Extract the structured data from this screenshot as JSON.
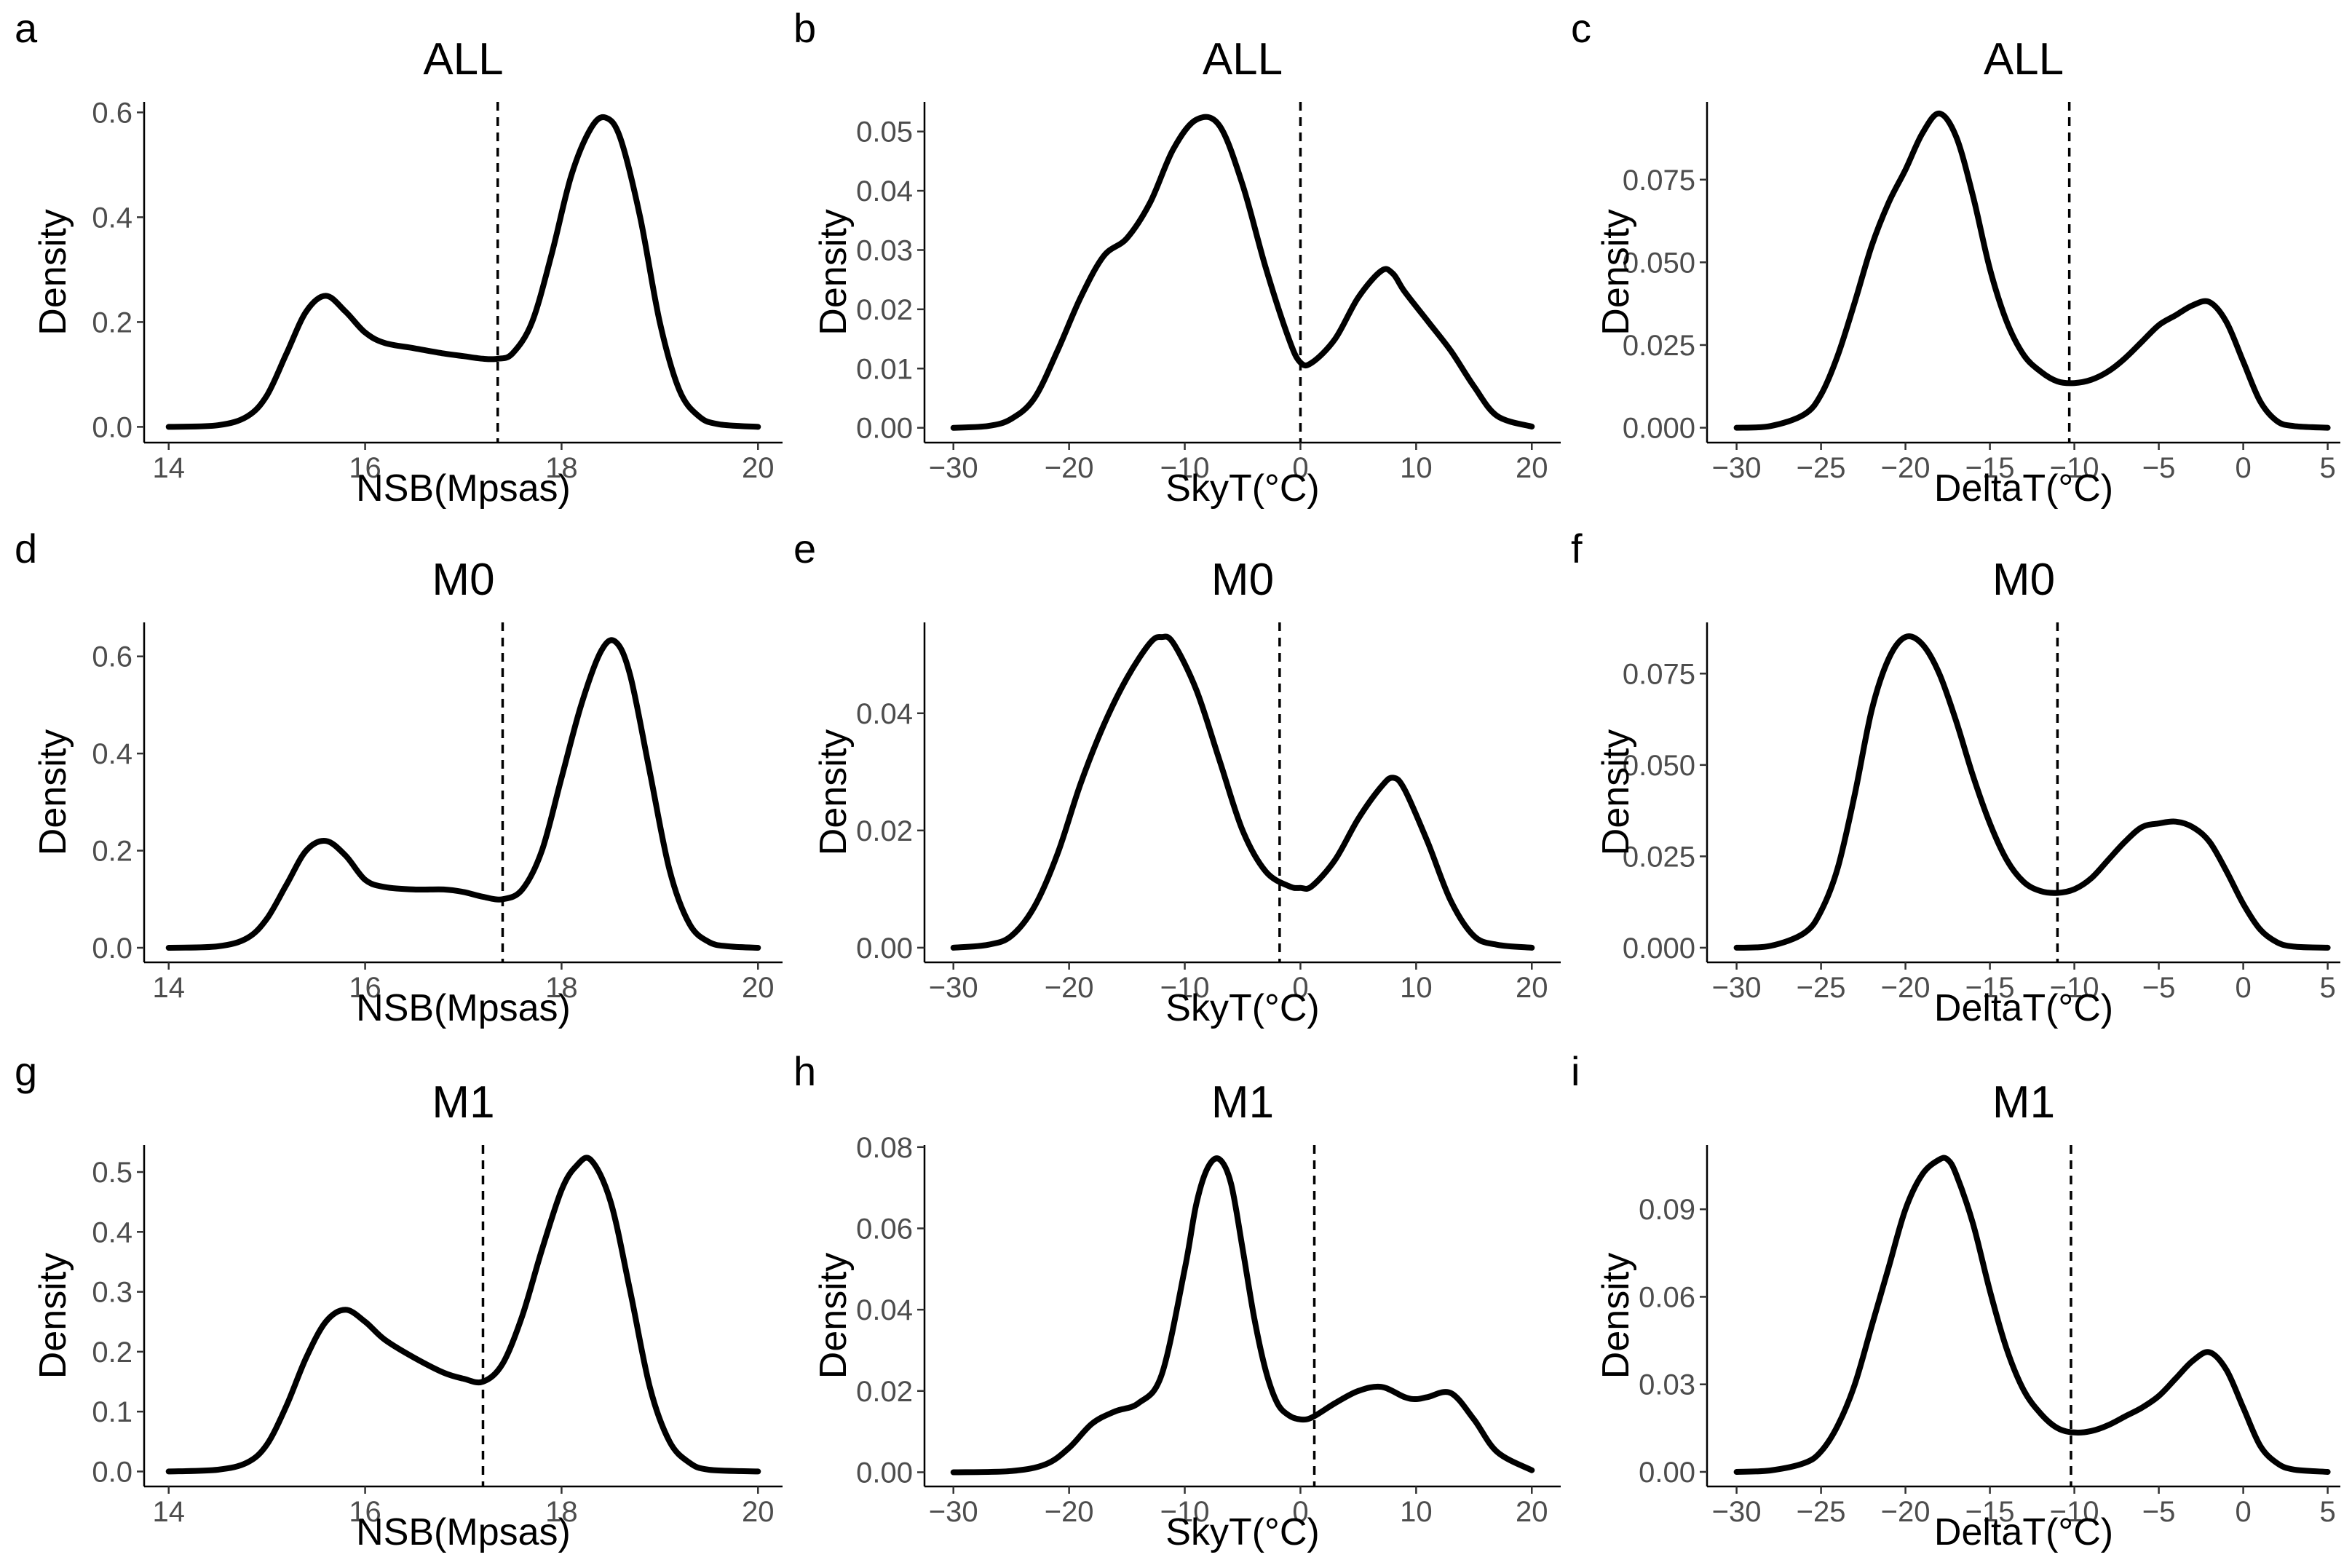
{
  "figure": {
    "background": "#ffffff",
    "curve_color": "#000000"
  },
  "chart_data": [
    {
      "id": "a",
      "letter": "a",
      "type": "line",
      "title": "ALL",
      "xlabel": "NSB(Mpsas)",
      "ylabel": "Density",
      "xlim": [
        13.75,
        20.25
      ],
      "ylim": [
        -0.03,
        0.62
      ],
      "xticks": [
        14,
        16,
        18,
        20
      ],
      "xtick_labels": [
        "14",
        "16",
        "18",
        "20"
      ],
      "yticks": [
        0,
        0.2,
        0.4,
        0.6
      ],
      "ytick_labels": [
        "0.0",
        "0.2",
        "0.4",
        "0.6"
      ],
      "vline": 17.35,
      "x": [
        14,
        14.5,
        14.8,
        15,
        15.2,
        15.4,
        15.6,
        15.8,
        16,
        16.2,
        16.5,
        16.8,
        17,
        17.2,
        17.35,
        17.5,
        17.7,
        17.9,
        18.1,
        18.3,
        18.45,
        18.6,
        18.8,
        19,
        19.2,
        19.4,
        19.6,
        20
      ],
      "y": [
        0,
        0.003,
        0.02,
        0.06,
        0.14,
        0.22,
        0.25,
        0.22,
        0.18,
        0.16,
        0.15,
        0.14,
        0.135,
        0.13,
        0.13,
        0.14,
        0.2,
        0.33,
        0.48,
        0.57,
        0.59,
        0.55,
        0.4,
        0.2,
        0.07,
        0.02,
        0.005,
        0
      ]
    },
    {
      "id": "b",
      "letter": "b",
      "type": "line",
      "title": "ALL",
      "xlabel": "SkyT(°C)",
      "ylabel": "Density",
      "xlim": [
        -32.5,
        22.5
      ],
      "ylim": [
        -0.0025,
        0.055
      ],
      "xticks": [
        -30,
        -20,
        -10,
        0,
        10,
        20
      ],
      "xtick_labels": [
        "−30",
        "−20",
        "−10",
        "0",
        "10",
        "20"
      ],
      "yticks": [
        0,
        0.01,
        0.02,
        0.03,
        0.04,
        0.05
      ],
      "ytick_labels": [
        "0.00",
        "0.01",
        "0.02",
        "0.03",
        "0.04",
        "0.05"
      ],
      "vline": 0,
      "x": [
        -30,
        -27,
        -25,
        -23,
        -21,
        -19,
        -17,
        -15,
        -13,
        -11,
        -9,
        -7,
        -5,
        -3,
        -1,
        0,
        1,
        3,
        5,
        7,
        8,
        9,
        11,
        13,
        15,
        17,
        20
      ],
      "y": [
        0,
        0.0003,
        0.0015,
        0.005,
        0.013,
        0.022,
        0.029,
        0.032,
        0.038,
        0.047,
        0.052,
        0.051,
        0.041,
        0.027,
        0.015,
        0.011,
        0.011,
        0.015,
        0.022,
        0.0265,
        0.026,
        0.023,
        0.018,
        0.013,
        0.007,
        0.002,
        0.0002
      ]
    },
    {
      "id": "c",
      "letter": "c",
      "type": "line",
      "title": "ALL",
      "xlabel": "DeltaT(°C)",
      "ylabel": "Density",
      "xlim": [
        -31.75,
        5.75
      ],
      "ylim": [
        -0.0045,
        0.0985
      ],
      "xticks": [
        -30,
        -25,
        -20,
        -15,
        -10,
        -5,
        0,
        5
      ],
      "xtick_labels": [
        "−30",
        "−25",
        "−20",
        "−15",
        "−10",
        "−5",
        "0",
        "5"
      ],
      "yticks": [
        0,
        0.025,
        0.05,
        0.075
      ],
      "ytick_labels": [
        "0.000",
        "0.025",
        "0.050",
        "0.075"
      ],
      "vline": -10.3,
      "x": [
        -30,
        -28,
        -26,
        -25,
        -24,
        -23,
        -22,
        -21,
        -20,
        -19,
        -18,
        -17,
        -16,
        -15,
        -14,
        -13,
        -12,
        -11,
        -10,
        -9,
        -8,
        -7,
        -6,
        -5,
        -4,
        -3,
        -2,
        -1,
        0,
        1,
        2,
        3,
        5
      ],
      "y": [
        0,
        0.0005,
        0.004,
        0.01,
        0.022,
        0.038,
        0.055,
        0.068,
        0.078,
        0.089,
        0.095,
        0.088,
        0.07,
        0.048,
        0.032,
        0.022,
        0.017,
        0.014,
        0.0135,
        0.0145,
        0.017,
        0.021,
        0.026,
        0.031,
        0.034,
        0.037,
        0.038,
        0.032,
        0.02,
        0.008,
        0.002,
        0.0005,
        0
      ]
    },
    {
      "id": "d",
      "letter": "d",
      "type": "line",
      "title": "M0",
      "xlabel": "NSB(Mpsas)",
      "ylabel": "Density",
      "xlim": [
        13.75,
        20.25
      ],
      "ylim": [
        -0.03,
        0.67
      ],
      "xticks": [
        14,
        16,
        18,
        20
      ],
      "xtick_labels": [
        "14",
        "16",
        "18",
        "20"
      ],
      "yticks": [
        0,
        0.2,
        0.4,
        0.6
      ],
      "ytick_labels": [
        "0.0",
        "0.2",
        "0.4",
        "0.6"
      ],
      "vline": 17.4,
      "x": [
        14,
        14.5,
        14.8,
        15,
        15.2,
        15.4,
        15.6,
        15.8,
        16,
        16.2,
        16.5,
        16.8,
        17,
        17.2,
        17.4,
        17.6,
        17.8,
        18,
        18.2,
        18.4,
        18.55,
        18.7,
        18.9,
        19.1,
        19.3,
        19.5,
        19.7,
        20
      ],
      "y": [
        0,
        0.003,
        0.02,
        0.06,
        0.13,
        0.2,
        0.22,
        0.19,
        0.14,
        0.125,
        0.12,
        0.12,
        0.115,
        0.105,
        0.1,
        0.12,
        0.2,
        0.35,
        0.5,
        0.61,
        0.63,
        0.56,
        0.36,
        0.16,
        0.05,
        0.012,
        0.003,
        0
      ]
    },
    {
      "id": "e",
      "letter": "e",
      "type": "line",
      "title": "M0",
      "xlabel": "SkyT(°C)",
      "ylabel": "Density",
      "xlim": [
        -32.5,
        22.5
      ],
      "ylim": [
        -0.0025,
        0.0555
      ],
      "xticks": [
        -30,
        -20,
        -10,
        0,
        10,
        20
      ],
      "xtick_labels": [
        "−30",
        "−20",
        "−10",
        "0",
        "10",
        "20"
      ],
      "yticks": [
        0,
        0.02,
        0.04
      ],
      "ytick_labels": [
        "0.00",
        "0.02",
        "0.04"
      ],
      "vline": -1.8,
      "x": [
        -30,
        -27,
        -25,
        -23,
        -21,
        -19,
        -17,
        -15,
        -13,
        -12,
        -11,
        -9,
        -7,
        -5,
        -3,
        -1,
        0,
        1,
        3,
        5,
        7,
        8,
        9,
        11,
        13,
        15,
        17,
        20
      ],
      "y": [
        0,
        0.0005,
        0.002,
        0.007,
        0.016,
        0.028,
        0.038,
        0.046,
        0.052,
        0.053,
        0.052,
        0.044,
        0.032,
        0.02,
        0.013,
        0.0105,
        0.0102,
        0.0105,
        0.015,
        0.022,
        0.0275,
        0.029,
        0.027,
        0.018,
        0.008,
        0.002,
        0.0005,
        0
      ]
    },
    {
      "id": "f",
      "letter": "f",
      "type": "line",
      "title": "M0",
      "xlabel": "DeltaT(°C)",
      "ylabel": "Density",
      "xlim": [
        -31.75,
        5.75
      ],
      "ylim": [
        -0.004,
        0.089
      ],
      "xticks": [
        -30,
        -25,
        -20,
        -15,
        -10,
        -5,
        0,
        5
      ],
      "xtick_labels": [
        "−30",
        "−25",
        "−20",
        "−15",
        "−10",
        "−5",
        "0",
        "5"
      ],
      "yticks": [
        0,
        0.025,
        0.05,
        0.075
      ],
      "ytick_labels": [
        "0.000",
        "0.025",
        "0.050",
        "0.075"
      ],
      "vline": -11,
      "x": [
        -30,
        -28,
        -26,
        -25,
        -24,
        -23,
        -22,
        -21,
        -20,
        -19,
        -18,
        -17,
        -16,
        -15,
        -14,
        -13,
        -12,
        -11,
        -10,
        -9,
        -8,
        -7,
        -6,
        -5,
        -4,
        -3,
        -2,
        -1,
        0,
        1,
        2,
        3,
        5
      ],
      "y": [
        0,
        0.0005,
        0.004,
        0.01,
        0.022,
        0.042,
        0.065,
        0.079,
        0.085,
        0.083,
        0.075,
        0.062,
        0.047,
        0.034,
        0.024,
        0.018,
        0.0155,
        0.015,
        0.016,
        0.019,
        0.024,
        0.029,
        0.033,
        0.034,
        0.0345,
        0.033,
        0.029,
        0.021,
        0.012,
        0.005,
        0.0015,
        0.0003,
        0
      ]
    },
    {
      "id": "g",
      "letter": "g",
      "type": "line",
      "title": "M1",
      "xlabel": "NSB(Mpsas)",
      "ylabel": "Density",
      "xlim": [
        13.75,
        20.25
      ],
      "ylim": [
        -0.025,
        0.545
      ],
      "xticks": [
        14,
        16,
        18,
        20
      ],
      "xtick_labels": [
        "14",
        "16",
        "18",
        "20"
      ],
      "yticks": [
        0,
        0.1,
        0.2,
        0.3,
        0.4,
        0.5
      ],
      "ytick_labels": [
        "0.0",
        "0.1",
        "0.2",
        "0.3",
        "0.4",
        "0.5"
      ],
      "vline": 17.2,
      "x": [
        14,
        14.5,
        14.8,
        15,
        15.2,
        15.4,
        15.6,
        15.8,
        16,
        16.2,
        16.5,
        16.8,
        17,
        17.2,
        17.4,
        17.6,
        17.8,
        18,
        18.15,
        18.3,
        18.5,
        18.7,
        18.9,
        19.1,
        19.3,
        19.5,
        20
      ],
      "y": [
        0,
        0.003,
        0.015,
        0.045,
        0.11,
        0.19,
        0.25,
        0.27,
        0.25,
        0.22,
        0.19,
        0.165,
        0.155,
        0.15,
        0.18,
        0.26,
        0.37,
        0.47,
        0.51,
        0.52,
        0.45,
        0.3,
        0.14,
        0.05,
        0.015,
        0.003,
        0
      ]
    },
    {
      "id": "h",
      "letter": "h",
      "type": "line",
      "title": "M1",
      "xlabel": "SkyT(°C)",
      "ylabel": "Density",
      "xlim": [
        -32.5,
        22.5
      ],
      "ylim": [
        -0.0035,
        0.0805
      ],
      "xticks": [
        -30,
        -20,
        -10,
        0,
        10,
        20
      ],
      "xtick_labels": [
        "−30",
        "−20",
        "−10",
        "0",
        "10",
        "20"
      ],
      "yticks": [
        0,
        0.02,
        0.04,
        0.06,
        0.08
      ],
      "ytick_labels": [
        "0.00",
        "0.02",
        "0.04",
        "0.06",
        "0.08"
      ],
      "vline": 1.2,
      "x": [
        -30,
        -25,
        -22,
        -20,
        -18,
        -16,
        -14,
        -12,
        -10,
        -9,
        -8,
        -7,
        -6,
        -5,
        -4,
        -3,
        -2,
        -1,
        0,
        1,
        3,
        5,
        7,
        9,
        10,
        11,
        13,
        15,
        17,
        20
      ],
      "y": [
        0,
        0.0003,
        0.002,
        0.006,
        0.012,
        0.015,
        0.017,
        0.024,
        0.05,
        0.066,
        0.075,
        0.077,
        0.071,
        0.055,
        0.038,
        0.025,
        0.017,
        0.014,
        0.013,
        0.0135,
        0.017,
        0.02,
        0.021,
        0.0185,
        0.018,
        0.0185,
        0.0195,
        0.013,
        0.005,
        0.0005
      ]
    },
    {
      "id": "i",
      "letter": "i",
      "type": "line",
      "title": "M1",
      "xlabel": "DeltaT(°C)",
      "ylabel": "Density",
      "xlim": [
        -31.75,
        5.75
      ],
      "ylim": [
        -0.005,
        0.112
      ],
      "xticks": [
        -30,
        -25,
        -20,
        -15,
        -10,
        -5,
        0,
        5
      ],
      "xtick_labels": [
        "−30",
        "−25",
        "−20",
        "−15",
        "−10",
        "−5",
        "0",
        "5"
      ],
      "yticks": [
        0,
        0.03,
        0.06,
        0.09
      ],
      "ytick_labels": [
        "0.00",
        "0.03",
        "0.06",
        "0.09"
      ],
      "vline": -10.2,
      "x": [
        -30,
        -28,
        -26,
        -25,
        -24,
        -23,
        -22,
        -21,
        -20,
        -19,
        -18,
        -17.5,
        -17,
        -16,
        -15,
        -14,
        -13,
        -12,
        -11,
        -10,
        -9,
        -8,
        -7,
        -6,
        -5,
        -4,
        -3,
        -2,
        -1,
        0,
        1,
        2,
        3,
        5
      ],
      "y": [
        0,
        0.0005,
        0.003,
        0.007,
        0.016,
        0.03,
        0.05,
        0.07,
        0.09,
        0.102,
        0.107,
        0.107,
        0.102,
        0.085,
        0.062,
        0.042,
        0.028,
        0.02,
        0.015,
        0.0135,
        0.014,
        0.016,
        0.019,
        0.022,
        0.026,
        0.032,
        0.038,
        0.041,
        0.035,
        0.022,
        0.009,
        0.003,
        0.0008,
        0
      ]
    }
  ]
}
